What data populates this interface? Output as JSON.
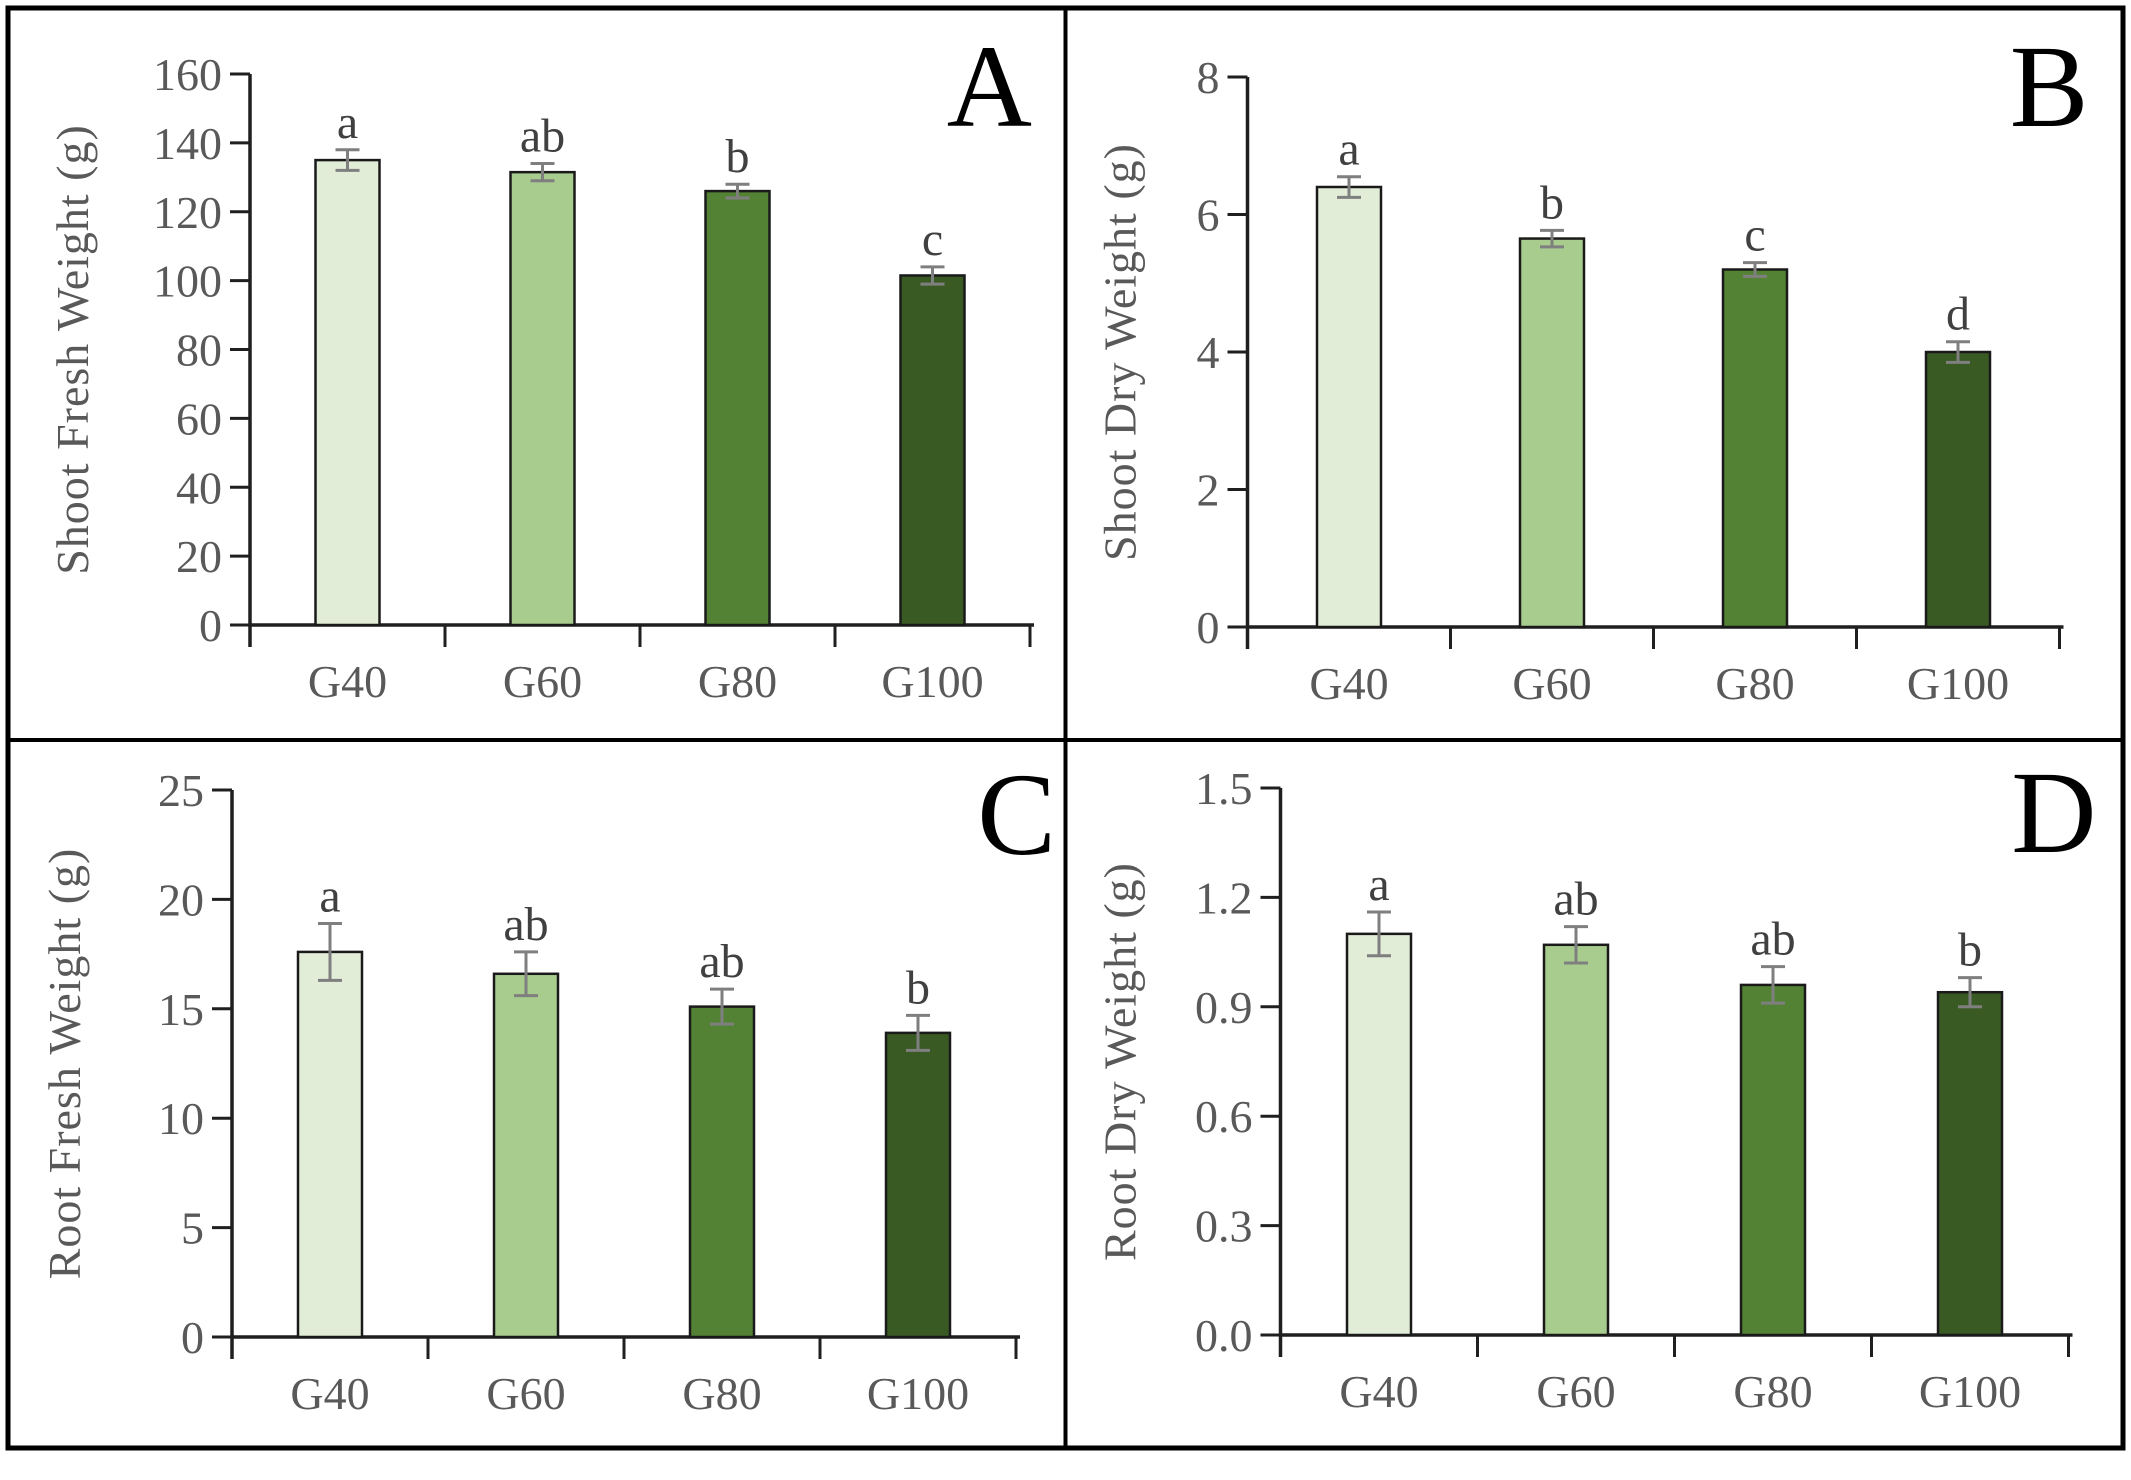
{
  "figure": {
    "background": "#ffffff",
    "border_color": "#000000",
    "axis_color": "#1f1f1f",
    "tick_label_color": "#595959",
    "sig_letter_color": "#404040",
    "error_bar_color": "#7f7f7f",
    "bar_stroke_color": "#1a1a1a",
    "bar_palette": [
      "#e1edd7",
      "#a7cc8e",
      "#538234",
      "#3a5a24"
    ]
  },
  "chart_data": [
    {
      "type": "bar",
      "panel_letter": "A",
      "ylabel": "Shoot Fresh Weight (g)",
      "xlabel": "",
      "categories": [
        "G40",
        "G60",
        "G80",
        "G100"
      ],
      "values": [
        135,
        131.5,
        126,
        101.5
      ],
      "errors": [
        3,
        2.5,
        2,
        2.5
      ],
      "sig_letters": [
        "a",
        "ab",
        "b",
        "c"
      ],
      "ylim": [
        0,
        160
      ],
      "ytick_labels": [
        "0",
        "20",
        "40",
        "60",
        "80",
        "100",
        "120",
        "140",
        "160"
      ],
      "grid": "off",
      "legend": "none"
    },
    {
      "type": "bar",
      "panel_letter": "B",
      "ylabel": "Shoot Dry Weight (g)",
      "xlabel": "",
      "categories": [
        "G40",
        "G60",
        "G80",
        "G100"
      ],
      "values": [
        6.4,
        5.65,
        5.2,
        4.0
      ],
      "errors": [
        0.15,
        0.12,
        0.1,
        0.15
      ],
      "sig_letters": [
        "a",
        "b",
        "c",
        "d"
      ],
      "ylim": [
        0,
        8
      ],
      "ytick_labels": [
        "0",
        "2",
        "4",
        "6",
        "8"
      ],
      "grid": "off",
      "legend": "none"
    },
    {
      "type": "bar",
      "panel_letter": "C",
      "ylabel": "Root Fresh Weight (g)",
      "xlabel": "",
      "categories": [
        "G40",
        "G60",
        "G80",
        "G100"
      ],
      "values": [
        17.6,
        16.6,
        15.1,
        13.9
      ],
      "errors": [
        1.3,
        1.0,
        0.8,
        0.8
      ],
      "sig_letters": [
        "a",
        "ab",
        "ab",
        "b"
      ],
      "ylim": [
        0,
        25
      ],
      "ytick_labels": [
        "0",
        "5",
        "10",
        "15",
        "20",
        "25"
      ],
      "grid": "off",
      "legend": "none"
    },
    {
      "type": "bar",
      "panel_letter": "D",
      "ylabel": "Root Dry Weight (g)",
      "xlabel": "",
      "categories": [
        "G40",
        "G60",
        "G80",
        "G100"
      ],
      "values": [
        1.1,
        1.07,
        0.96,
        0.94
      ],
      "errors": [
        0.06,
        0.05,
        0.05,
        0.04
      ],
      "sig_letters": [
        "a",
        "ab",
        "ab",
        "b"
      ],
      "ylim": [
        0,
        1.5
      ],
      "ytick_labels": [
        "0.0",
        "0.3",
        "0.6",
        "0.9",
        "1.2",
        "1.5"
      ],
      "grid": "off",
      "legend": "none"
    }
  ]
}
